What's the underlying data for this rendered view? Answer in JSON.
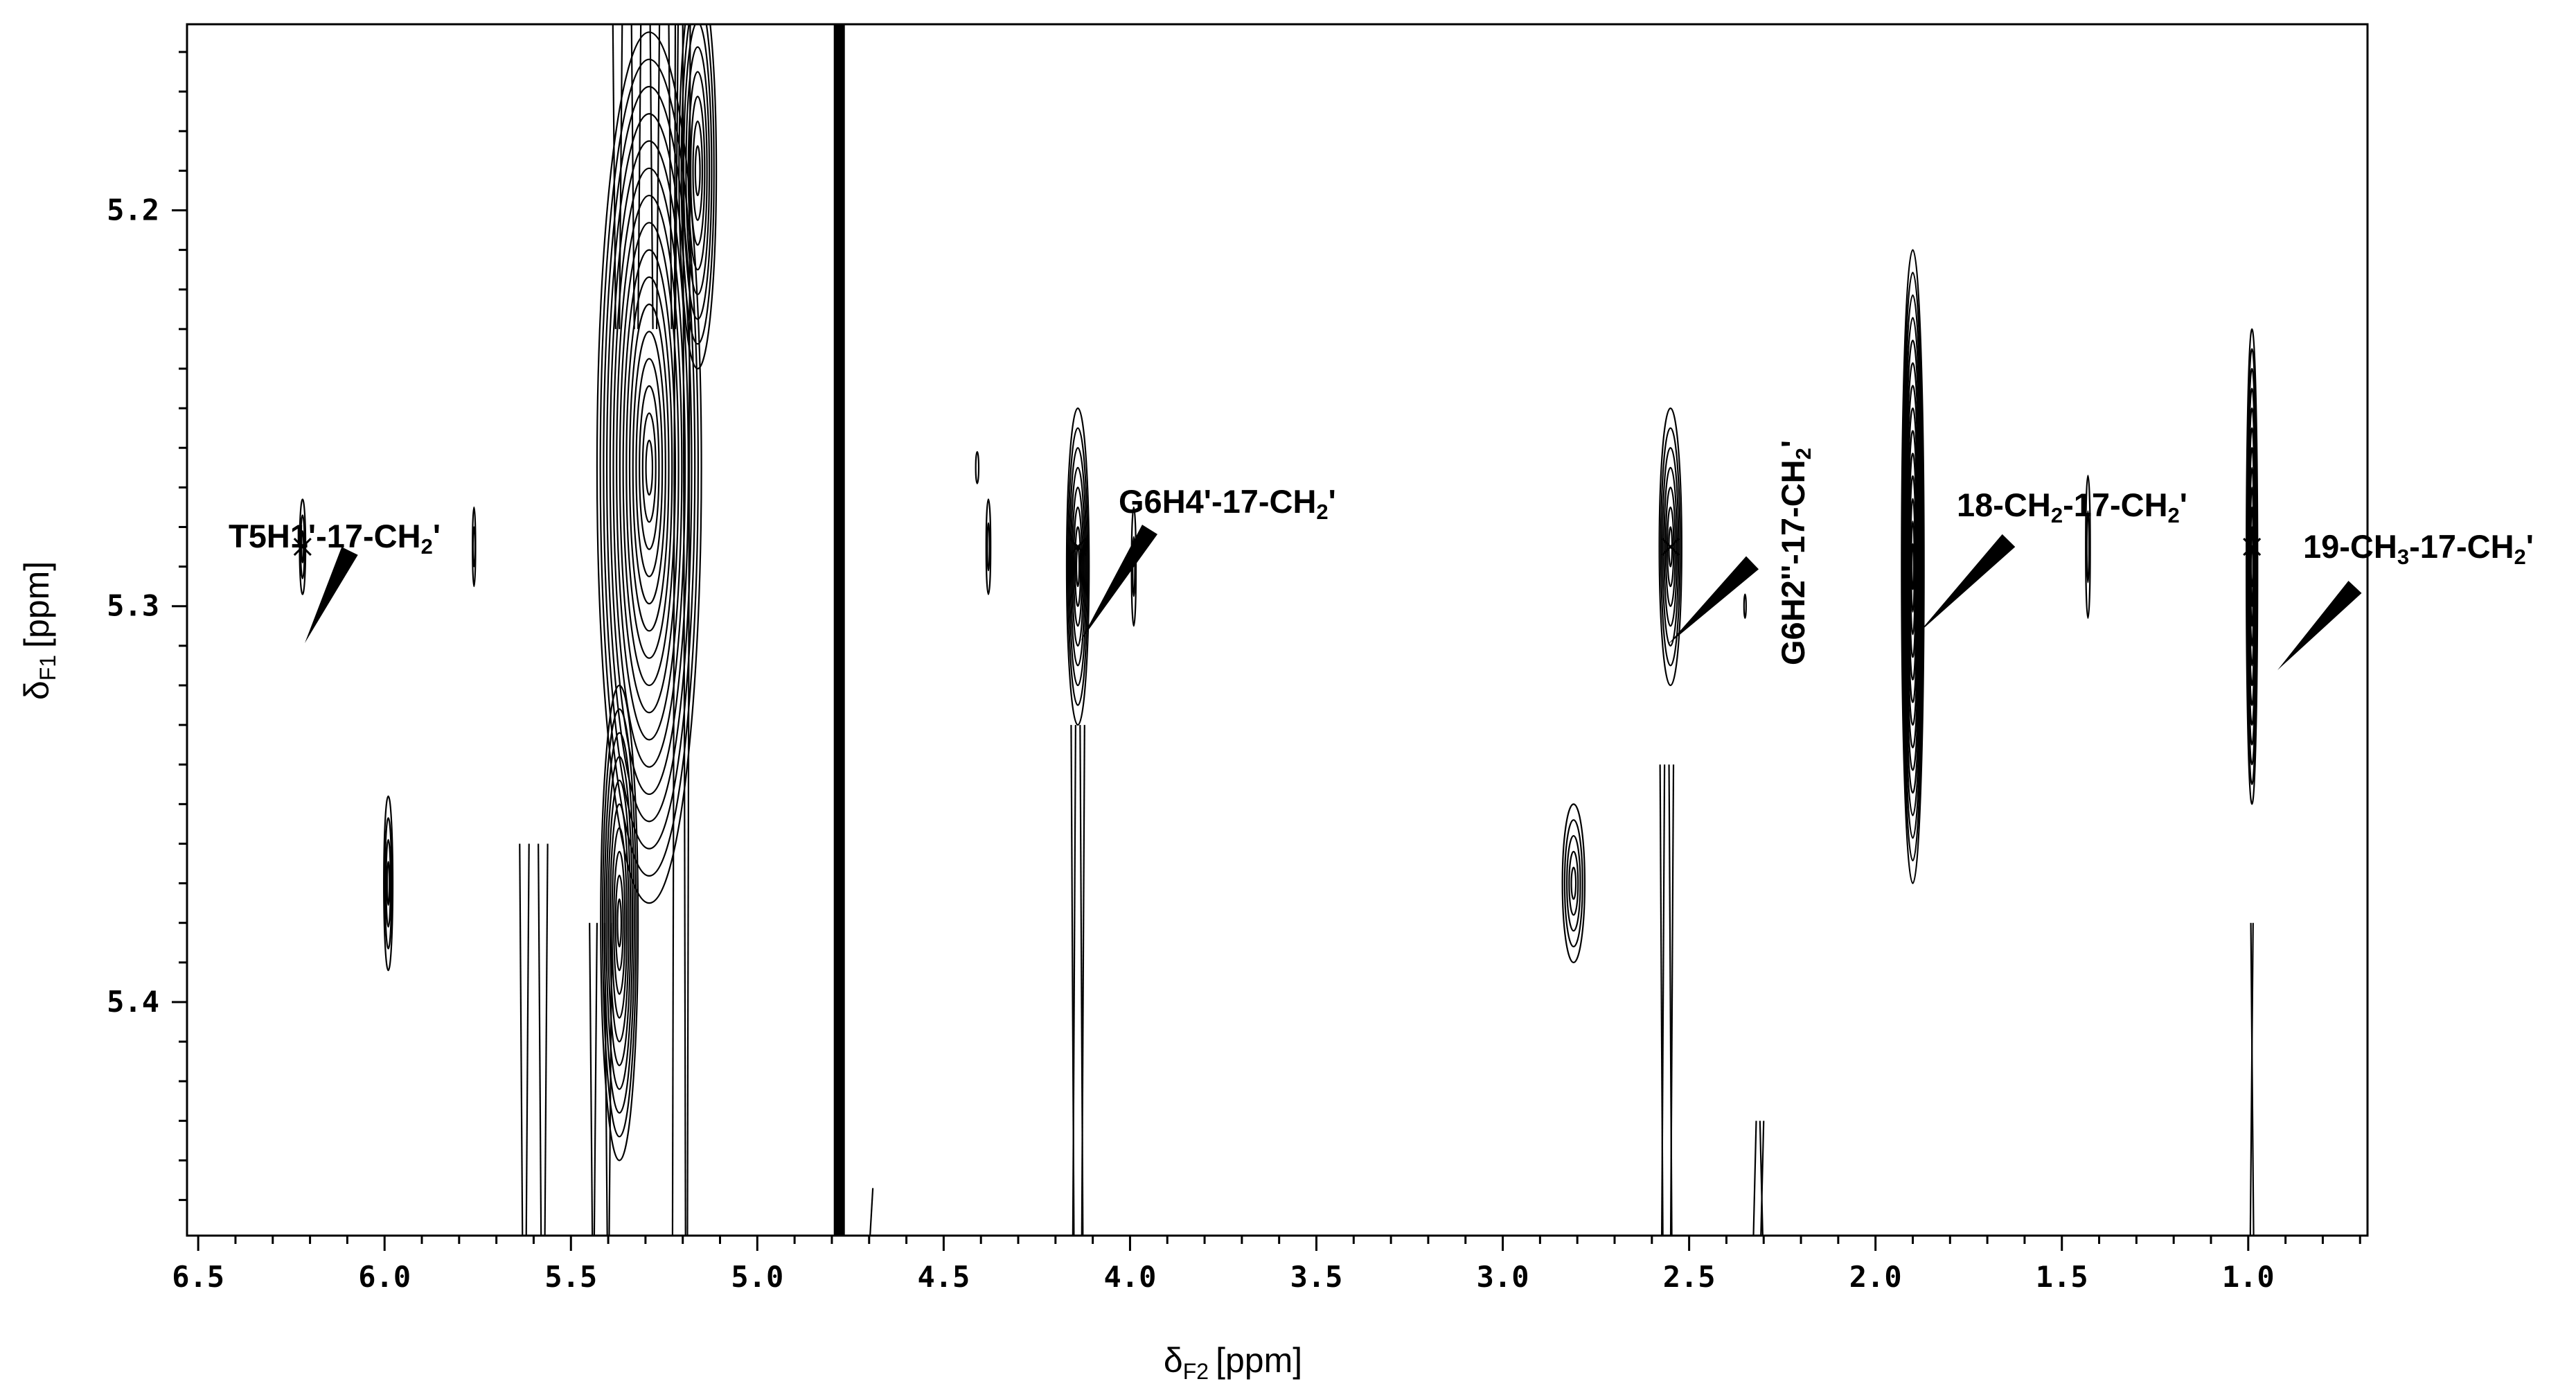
{
  "chart_data": {
    "type": "contour",
    "x_axis": {
      "symbol": "δ",
      "subscript": "F2",
      "unit": "[ppm]",
      "range": [
        6.53,
        0.68
      ],
      "reversed": true,
      "ticks": [
        6.5,
        6.0,
        5.5,
        5.0,
        4.5,
        4.0,
        3.5,
        3.0,
        2.5,
        2.0,
        1.5,
        1.0
      ],
      "tick_labels": [
        "6.5",
        "6.0",
        "5.5",
        "5.0",
        "4.5",
        "4.0",
        "3.5",
        "3.0",
        "2.5",
        "2.0",
        "1.5",
        "1.0"
      ]
    },
    "y_axis": {
      "symbol": "δ",
      "subscript": "F1",
      "unit": "[ppm]",
      "range": [
        5.153,
        5.459
      ],
      "reversed": false,
      "ticks": [
        5.2,
        5.3,
        5.4
      ],
      "tick_labels": [
        "5.2",
        "5.3",
        "5.4"
      ]
    },
    "solvent_line_x": 4.78,
    "peaks": [
      {
        "x": 6.22,
        "y": 5.285,
        "sx": 0.008,
        "sy": 0.012,
        "levels": 3
      },
      {
        "x": 5.99,
        "y": 5.37,
        "sx": 0.012,
        "sy": 0.022,
        "levels": 4
      },
      {
        "x": 5.76,
        "y": 5.285,
        "sx": 0.004,
        "sy": 0.01,
        "levels": 2
      },
      {
        "x": 5.29,
        "y": 5.265,
        "sx": 0.14,
        "sy": 0.11,
        "levels": 16
      },
      {
        "x": 5.37,
        "y": 5.38,
        "sx": 0.05,
        "sy": 0.06,
        "levels": 10
      },
      {
        "x": 5.16,
        "y": 5.19,
        "sx": 0.05,
        "sy": 0.05,
        "levels": 8
      },
      {
        "x": 4.41,
        "y": 5.265,
        "sx": 0.004,
        "sy": 0.004,
        "levels": 1
      },
      {
        "x": 4.38,
        "y": 5.285,
        "sx": 0.006,
        "sy": 0.012,
        "levels": 2
      },
      {
        "x": 4.14,
        "y": 5.29,
        "sx": 0.03,
        "sy": 0.04,
        "levels": 8
      },
      {
        "x": 3.99,
        "y": 5.29,
        "sx": 0.006,
        "sy": 0.015,
        "levels": 2
      },
      {
        "x": 2.81,
        "y": 5.37,
        "sx": 0.03,
        "sy": 0.02,
        "levels": 5
      },
      {
        "x": 2.55,
        "y": 5.285,
        "sx": 0.03,
        "sy": 0.035,
        "levels": 7
      },
      {
        "x": 2.35,
        "y": 5.3,
        "sx": 0.002,
        "sy": 0.003,
        "levels": 1
      },
      {
        "x": 1.9,
        "y": 5.29,
        "sx": 0.03,
        "sy": 0.08,
        "levels": 14
      },
      {
        "x": 1.43,
        "y": 5.285,
        "sx": 0.006,
        "sy": 0.018,
        "levels": 2
      },
      {
        "x": 0.99,
        "y": 5.29,
        "sx": 0.015,
        "sy": 0.06,
        "levels": 12
      }
    ],
    "streaks": [
      {
        "x": 5.6,
        "y_from": 5.36,
        "y_to": 5.459,
        "lines": 4,
        "spacing": 0.025
      },
      {
        "x": 5.42,
        "y_from": 5.38,
        "y_to": 5.459,
        "lines": 4,
        "spacing": 0.02
      },
      {
        "x": 5.3,
        "y_from": 5.153,
        "y_to": 5.23,
        "lines": 8,
        "spacing": 0.025
      },
      {
        "x": 5.2,
        "y_from": 5.153,
        "y_to": 5.459,
        "lines": 3,
        "spacing": 0.02
      },
      {
        "x": 4.14,
        "y_from": 5.33,
        "y_to": 5.459,
        "lines": 4,
        "spacing": 0.012
      },
      {
        "x": 2.56,
        "y_from": 5.34,
        "y_to": 5.459,
        "lines": 4,
        "spacing": 0.012
      },
      {
        "x": 2.31,
        "y_from": 5.43,
        "y_to": 5.459,
        "lines": 3,
        "spacing": 0.01
      },
      {
        "x": 0.99,
        "y_from": 5.38,
        "y_to": 5.459,
        "lines": 2,
        "spacing": 0.006
      },
      {
        "x": 4.69,
        "y_from": 5.447,
        "y_to": 5.459,
        "lines": 1,
        "spacing": 0.002
      }
    ],
    "annotations": [
      {
        "main": "T5H1'-17-CH",
        "sub": "2",
        "tail": "'",
        "x": 6.22,
        "y": 5.285,
        "rotate": false
      },
      {
        "main": "G6H4'-17-CH",
        "sub": "2",
        "tail": "'",
        "x": 4.14,
        "y": 5.285,
        "rotate": false
      },
      {
        "main": "G6H2''-17-CH",
        "sub": "2",
        "tail": "'",
        "x": 2.55,
        "y": 5.285,
        "rotate": true
      },
      {
        "main": "18-CH",
        "sub": "2",
        "tail": "-17-CH",
        "sub2": "2",
        "tail2": "'",
        "x": 1.9,
        "y": 5.285,
        "rotate": false
      },
      {
        "main": "19-CH",
        "sub": "3",
        "tail": "-17-CH",
        "sub2": "2",
        "tail2": "'",
        "x": 0.99,
        "y": 5.285,
        "rotate": false
      }
    ]
  }
}
